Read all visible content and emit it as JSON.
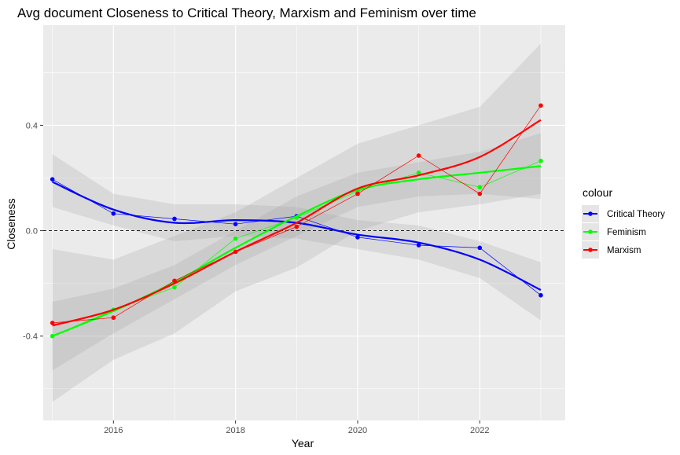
{
  "chart_data": {
    "type": "line",
    "title": "Avg document Closeness to Critical Theory, Marxism and Feminism over time",
    "xlabel": "Year",
    "ylabel": "Closeness",
    "xlim": [
      2014.85,
      2023.4
    ],
    "ylim": [
      -0.72,
      0.78
    ],
    "xticks": [
      2016,
      2018,
      2020,
      2022
    ],
    "yticks": [
      0.4,
      0.0,
      -0.4
    ],
    "ytick_labels": [
      "0.4",
      "0.0",
      "-0.4"
    ],
    "hline": 0,
    "legend": {
      "title": "colour",
      "placement": "right"
    },
    "grid": true,
    "x": [
      2015,
      2016,
      2017,
      2018,
      2019,
      2020,
      2021,
      2022,
      2023
    ],
    "series": [
      {
        "name": "Critical Theory",
        "color": "#0000ff",
        "values": [
          0.195,
          0.065,
          0.045,
          0.025,
          0.055,
          -0.025,
          -0.055,
          -0.065,
          -0.245
        ],
        "smooth": [
          0.185,
          0.08,
          0.03,
          0.04,
          0.03,
          -0.015,
          -0.045,
          -0.11,
          -0.225
        ],
        "ci_lower": [
          0.09,
          0.02,
          -0.04,
          -0.02,
          -0.03,
          -0.07,
          -0.11,
          -0.18,
          -0.34
        ],
        "ci_upper": [
          0.29,
          0.14,
          0.1,
          0.1,
          0.09,
          0.04,
          0.02,
          -0.04,
          -0.12
        ]
      },
      {
        "name": "Feminism",
        "color": "#00ff00",
        "values": [
          -0.4,
          -0.3,
          -0.215,
          -0.03,
          0.05,
          0.15,
          0.22,
          0.165,
          0.265
        ],
        "smooth": [
          -0.4,
          -0.305,
          -0.195,
          -0.065,
          0.055,
          0.155,
          0.195,
          0.22,
          0.245
        ],
        "ci_lower": [
          -0.53,
          -0.39,
          -0.26,
          -0.13,
          -0.02,
          0.09,
          0.13,
          0.14,
          0.12
        ],
        "ci_upper": [
          -0.27,
          -0.22,
          -0.13,
          0.0,
          0.13,
          0.22,
          0.26,
          0.3,
          0.37
        ]
      },
      {
        "name": "Marxism",
        "color": "#ff0000",
        "values": [
          -0.35,
          -0.33,
          -0.19,
          -0.08,
          0.015,
          0.14,
          0.285,
          0.14,
          0.475
        ],
        "smooth": [
          -0.36,
          -0.3,
          -0.2,
          -0.08,
          0.03,
          0.16,
          0.21,
          0.28,
          0.42
        ],
        "ci_lower": [
          -0.65,
          -0.49,
          -0.39,
          -0.23,
          -0.14,
          0.0,
          0.07,
          0.1,
          0.14
        ],
        "ci_upper": [
          -0.07,
          -0.11,
          -0.02,
          0.07,
          0.2,
          0.33,
          0.4,
          0.47,
          0.71
        ]
      }
    ]
  }
}
